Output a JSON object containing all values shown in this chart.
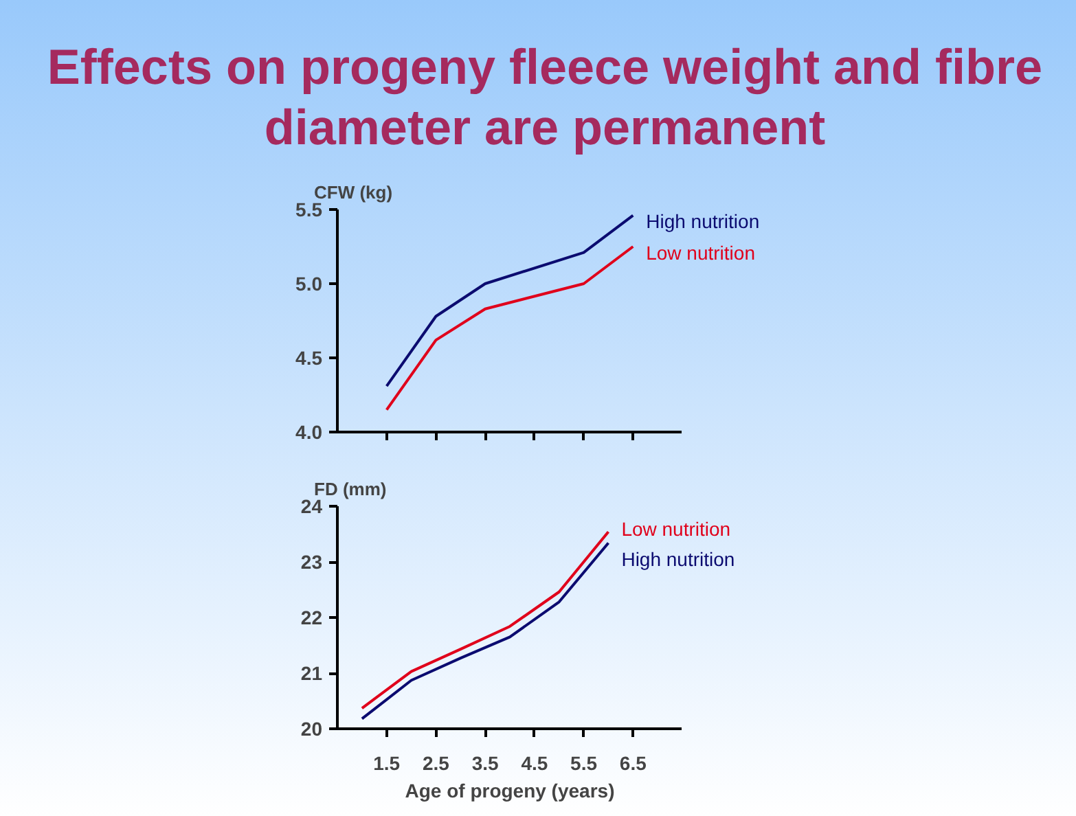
{
  "chart_data": [
    {
      "type": "line",
      "title": "Effects on progeny fleece weight and fibre diameter are permanent",
      "ylabel": "CFW (kg)",
      "xlim": [
        0.5,
        7.5
      ],
      "xticks": [
        {
          "value": 1.5,
          "label": null
        },
        {
          "value": 2.5,
          "label": null
        },
        {
          "value": 3.5,
          "label": null
        },
        {
          "value": 4.5,
          "label": null
        },
        {
          "value": 5.5,
          "label": null
        },
        {
          "value": 6.5,
          "label": null
        }
      ],
      "ylim": [
        4.0,
        5.5
      ],
      "yticks": [
        {
          "value": 4.0,
          "label": "4.0"
        },
        {
          "value": 4.5,
          "label": "4.5"
        },
        {
          "value": 5.0,
          "label": "5.0"
        },
        {
          "value": 5.5,
          "label": "5.5"
        }
      ],
      "tick_labels": "y",
      "series": [
        {
          "name": "High nutrition",
          "color": "#0b0b70",
          "x": [
            1.5,
            2.5,
            3.5,
            5.5,
            6.5
          ],
          "values": [
            4.31,
            4.78,
            5.0,
            5.21,
            5.46
          ]
        },
        {
          "name": "Low nutrition",
          "color": "#e0001b",
          "x": [
            1.5,
            2.5,
            3.5,
            5.5,
            6.5
          ],
          "values": [
            4.15,
            4.62,
            4.83,
            5.0,
            5.25
          ]
        }
      ]
    },
    {
      "type": "line",
      "ylabel": "FD (mm)",
      "xlabel": "Age of progeny (years)",
      "xlim": [
        0.5,
        7.5
      ],
      "xticks": [
        1.5,
        2.5,
        3.5,
        4.5,
        5.5,
        6.5
      ],
      "ylim": [
        20,
        24
      ],
      "yticks": [
        20,
        21,
        22,
        23,
        24
      ],
      "series": [
        {
          "name": "Low nutrition",
          "color": "#e0001b",
          "x": [
            1,
            2,
            3,
            4,
            5,
            6
          ],
          "values": [
            20.37,
            21.03,
            21.43,
            21.84,
            22.46,
            23.54
          ]
        },
        {
          "name": "High nutrition",
          "color": "#0b0b70",
          "x": [
            1,
            2,
            3,
            4,
            5,
            6
          ],
          "values": [
            20.18,
            20.87,
            21.27,
            21.65,
            22.28,
            23.34
          ]
        }
      ]
    }
  ]
}
